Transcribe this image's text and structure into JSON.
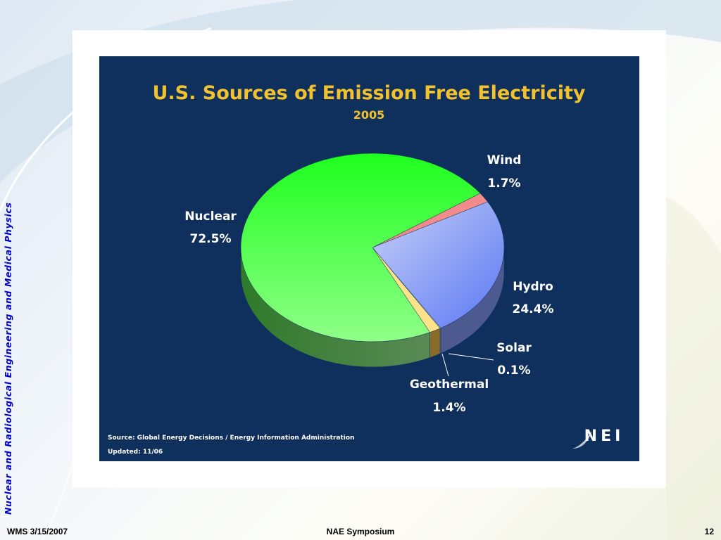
{
  "slide": {
    "side_label": "Nuclear and Radiological Engineering and Medical Physics",
    "footer_left": "WMS 3/15/2007",
    "footer_center": "NAE Symposium",
    "footer_right": "12"
  },
  "chart_data": {
    "type": "pie",
    "style": "3d",
    "title": "U.S. Sources of Emission Free Electricity",
    "subtitle": "2005",
    "slices": [
      {
        "name": "Nuclear",
        "value": 72.5,
        "label": "72.5%",
        "color": "#7dff70"
      },
      {
        "name": "Wind",
        "value": 1.7,
        "label": "1.7%",
        "color": "#f28c8c"
      },
      {
        "name": "Hydro",
        "value": 24.4,
        "label": "24.4%",
        "color": "#7f95f2"
      },
      {
        "name": "Solar",
        "value": 0.1,
        "label": "0.1%",
        "color": "#c8c8c8"
      },
      {
        "name": "Geothermal",
        "value": 1.4,
        "label": "1.4%",
        "color": "#ffe28a"
      }
    ],
    "source": "Source: Global Energy Decisions / Energy Information Administration",
    "updated": "Updated: 11/06",
    "logo_text": "NEI",
    "colors": {
      "background": "#0f2f5c",
      "title": "#f2c12e",
      "labels": "#ffffff"
    }
  }
}
